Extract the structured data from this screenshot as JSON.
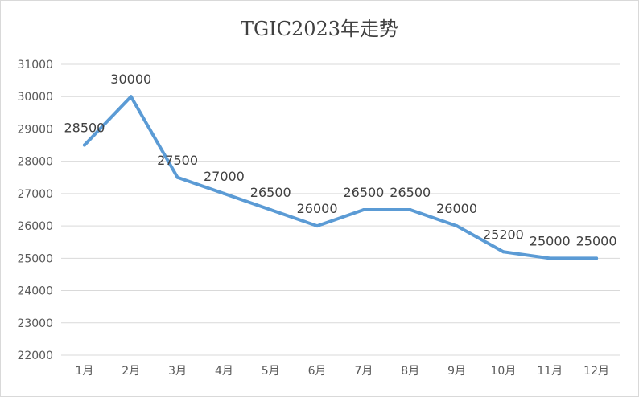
{
  "chart_data": {
    "type": "line",
    "title": "TGIC2023年走势",
    "categories": [
      "1月",
      "2月",
      "3月",
      "4月",
      "5月",
      "6月",
      "7月",
      "8月",
      "9月",
      "10月",
      "11月",
      "12月"
    ],
    "series": [
      {
        "values": [
          28500,
          30000,
          27500,
          27000,
          26500,
          26000,
          26500,
          26500,
          26000,
          25200,
          25000,
          25000
        ]
      }
    ],
    "data_labels": [
      "28500",
      "30000",
      "27500",
      "27000",
      "26500",
      "26000",
      "26500",
      "26500",
      "26000",
      "25200",
      "25000",
      "25000"
    ],
    "ylim": [
      22000,
      31000
    ],
    "yticks": [
      "22000",
      "23000",
      "24000",
      "25000",
      "26000",
      "27000",
      "28000",
      "29000",
      "30000",
      "31000"
    ],
    "grid": true,
    "legend": "none",
    "line_color": "#5b9bd5"
  }
}
